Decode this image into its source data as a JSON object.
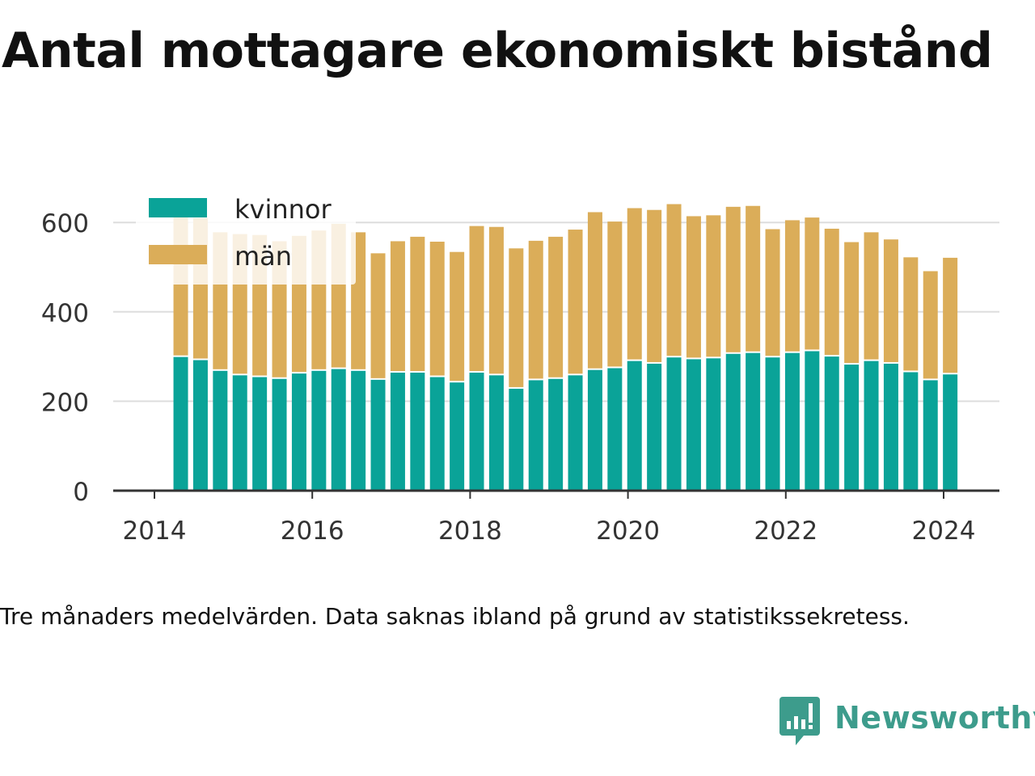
{
  "title": "Antal mottagare ekonomiskt bistånd",
  "note": "Tre månaders medelvärden. Data saknas ibland på grund av statistikssekretess.",
  "brand": {
    "name": "Newsworthy",
    "icon": "newsworthy-logo-icon"
  },
  "colors": {
    "kvinnor": "#0aa398",
    "man": "#dbad59",
    "grid": "#dddddd",
    "axis": "#333333",
    "text": "#333333"
  },
  "chart_data": {
    "type": "bar",
    "stacked": true,
    "x": [
      "2014-05",
      "2014-08",
      "2014-11",
      "2015-02",
      "2015-05",
      "2015-08",
      "2015-11",
      "2016-02",
      "2016-05",
      "2016-08",
      "2016-11",
      "2017-02",
      "2017-05",
      "2017-08",
      "2017-11",
      "2018-02",
      "2018-05",
      "2018-08",
      "2018-11",
      "2019-02",
      "2019-05",
      "2019-08",
      "2019-11",
      "2020-02",
      "2020-05",
      "2020-08",
      "2020-11",
      "2021-02",
      "2021-05",
      "2021-08",
      "2021-11",
      "2022-02",
      "2022-05",
      "2022-08",
      "2022-11",
      "2023-02",
      "2023-05",
      "2023-08",
      "2023-11",
      "2024-02"
    ],
    "x_ticks": [
      "2014",
      "2016",
      "2018",
      "2020",
      "2022",
      "2024"
    ],
    "y_ticks": [
      0,
      200,
      400,
      600
    ],
    "ylim": [
      0,
      650
    ],
    "grid": true,
    "legend_position": "top-left",
    "series": [
      {
        "name": "kvinnor",
        "values": [
          299,
          292,
          268,
          258,
          254,
          250,
          262,
          268,
          272,
          268,
          248,
          264,
          264,
          254,
          242,
          264,
          258,
          228,
          247,
          250,
          258,
          270,
          274,
          290,
          284,
          298,
          294,
          296,
          306,
          308,
          298,
          308,
          312,
          300,
          282,
          290,
          284,
          265,
          247,
          260
        ]
      },
      {
        "name": "män",
        "values": [
          318,
          318,
          310,
          316,
          318,
          308,
          308,
          314,
          325,
          310,
          283,
          294,
          304,
          303,
          292,
          328,
          332,
          314,
          312,
          318,
          326,
          353,
          328,
          342,
          344,
          343,
          320,
          320,
          329,
          329,
          287,
          297,
          299,
          286,
          274,
          288,
          278,
          257,
          244,
          261
        ]
      }
    ]
  }
}
